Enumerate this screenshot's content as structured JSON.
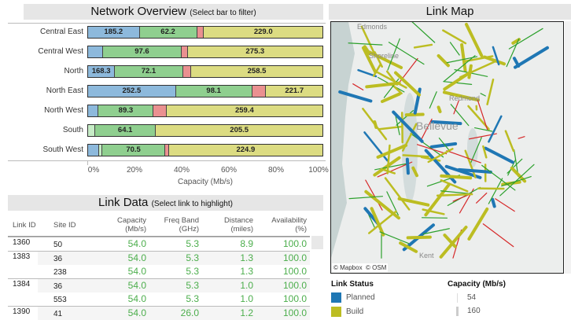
{
  "overview": {
    "title": "Network Overview",
    "subtitle": "(Select bar to filter)",
    "xlabel": "Capacity (Mb/s)",
    "ticks": [
      "0%",
      "20%",
      "40%",
      "60%",
      "80%",
      "100%"
    ]
  },
  "chart_data": {
    "type": "bar",
    "stacked": true,
    "title": "Network Overview",
    "xlabel": "Capacity (Mb/s)",
    "xlim": [
      0,
      100
    ],
    "categories": [
      "Central East",
      "Central West",
      "North",
      "North East",
      "North West",
      "South",
      "South West"
    ],
    "status_colors": {
      "Planned": "#8db9dc",
      "Other": "#c6ecc6",
      "Green": "#8fcf8f",
      "Red": "#ea9090",
      "Build": "#dcdc82"
    },
    "rows": [
      {
        "segments": [
          {
            "s": "Planned",
            "pct": 22,
            "label": "185.2"
          },
          {
            "s": "Green",
            "pct": 24.5,
            "label": "62.2"
          },
          {
            "s": "Red",
            "pct": 3,
            "label": ""
          },
          {
            "s": "Build",
            "pct": 50.5,
            "label": "229.0"
          }
        ]
      },
      {
        "segments": [
          {
            "s": "Planned",
            "pct": 6.3,
            "label": ""
          },
          {
            "s": "Green",
            "pct": 33.7,
            "label": "97.6"
          },
          {
            "s": "Red",
            "pct": 2.5,
            "label": ""
          },
          {
            "s": "Build",
            "pct": 57.5,
            "label": "275.3"
          }
        ]
      },
      {
        "segments": [
          {
            "s": "Planned",
            "pct": 11.5,
            "label": "168.3"
          },
          {
            "s": "Green",
            "pct": 29,
            "label": "72.1"
          },
          {
            "s": "Red",
            "pct": 3.5,
            "label": ""
          },
          {
            "s": "Build",
            "pct": 56,
            "label": "258.5"
          }
        ]
      },
      {
        "segments": [
          {
            "s": "Planned",
            "pct": 37.5,
            "label": "252.5"
          },
          {
            "s": "Green",
            "pct": 32.5,
            "label": "98.1"
          },
          {
            "s": "Red",
            "pct": 6,
            "label": ""
          },
          {
            "s": "Build",
            "pct": 24,
            "label": "221.7"
          }
        ]
      },
      {
        "segments": [
          {
            "s": "Planned",
            "pct": 4.5,
            "label": ""
          },
          {
            "s": "Green",
            "pct": 23.5,
            "label": "89.3"
          },
          {
            "s": "Red",
            "pct": 5.5,
            "label": ""
          },
          {
            "s": "Build",
            "pct": 66.5,
            "label": "259.4"
          }
        ]
      },
      {
        "segments": [
          {
            "s": "Other",
            "pct": 3,
            "label": ""
          },
          {
            "s": "Green",
            "pct": 26,
            "label": "64.1"
          },
          {
            "s": "Build",
            "pct": 71,
            "label": "205.5"
          }
        ]
      },
      {
        "segments": [
          {
            "s": "Planned",
            "pct": 4.8,
            "label": ""
          },
          {
            "s": "Other",
            "pct": 1.2,
            "label": ""
          },
          {
            "s": "Green",
            "pct": 27,
            "label": "70.5"
          },
          {
            "s": "Red",
            "pct": 1.5,
            "label": ""
          },
          {
            "s": "Build",
            "pct": 65.5,
            "label": "224.9"
          }
        ]
      }
    ]
  },
  "table": {
    "title": "Link Data",
    "subtitle": "(Select link to highlight)",
    "headers": [
      "Link ID",
      "Site ID",
      "Capacity\n(Mb/s)",
      "Freq Band\n(GHz)",
      "Distance\n(miles)",
      "Availability\n(%)"
    ],
    "rows": [
      [
        "1360",
        "50",
        "54.0",
        "5.3",
        "8.9",
        "100.0"
      ],
      [
        "1383",
        "36",
        "54.0",
        "5.3",
        "1.3",
        "100.0"
      ],
      [
        "",
        "238",
        "54.0",
        "5.3",
        "1.3",
        "100.0"
      ],
      [
        "1384",
        "36",
        "54.0",
        "5.3",
        "1.0",
        "100.0"
      ],
      [
        "",
        "553",
        "54.0",
        "5.3",
        "1.0",
        "100.0"
      ],
      [
        "1390",
        "41",
        "54.0",
        "26.0",
        "1.2",
        "100.0"
      ]
    ]
  },
  "map": {
    "title": "Link Map",
    "labels": [
      "Edmonds",
      "Shoreline",
      "Redmond",
      "Bellevue",
      "Kent"
    ],
    "attribution": "© Mapbox  © OSM"
  },
  "legend": {
    "status_title": "Link Status",
    "status": [
      {
        "label": "Planned",
        "color": "#1f77b4"
      },
      {
        "label": "Build",
        "color": "#bcbd22"
      }
    ],
    "capacity_title": "Capacity (Mb/s)",
    "capacity": [
      "54",
      "160"
    ]
  }
}
